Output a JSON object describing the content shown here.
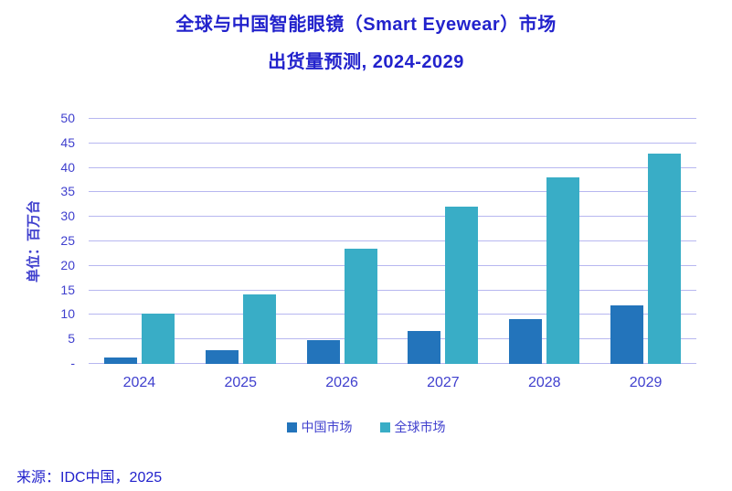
{
  "header": {
    "title_line1": "全球与中国智能眼镜（Smart Eyewear）市场",
    "title_line2": "出货量预测, 2024-2029"
  },
  "footer": {
    "source": "来源：IDC中国，2025"
  },
  "colors": {
    "title_text": "#2222CC",
    "axis_text": "#4040CE",
    "gridline": "#B7B7F0",
    "china_bar": "#2374BB",
    "global_bar": "#39ADC6",
    "background": "#FFFFFF"
  },
  "chart_data": {
    "type": "bar",
    "title": "全球与中国智能眼镜（Smart Eyewear）市场 出货量预测, 2024-2029",
    "categories": [
      "2024",
      "2025",
      "2026",
      "2027",
      "2028",
      "2029"
    ],
    "series": [
      {
        "key": "china",
        "name": "中国市场",
        "color": "#2374BB",
        "values": [
          1.4,
          2.8,
          4.9,
          6.8,
          9.2,
          12.0
        ]
      },
      {
        "key": "global",
        "name": "全球市场",
        "color": "#39ADC6",
        "values": [
          10.2,
          14.2,
          23.6,
          32.0,
          38.1,
          43.0
        ]
      }
    ],
    "xlabel": "",
    "ylabel": "单位：百万台",
    "ylim": [
      0,
      50
    ],
    "ytick_interval": 5,
    "zero_tick_label": "-",
    "grid": true,
    "legend_position": "bottom"
  }
}
